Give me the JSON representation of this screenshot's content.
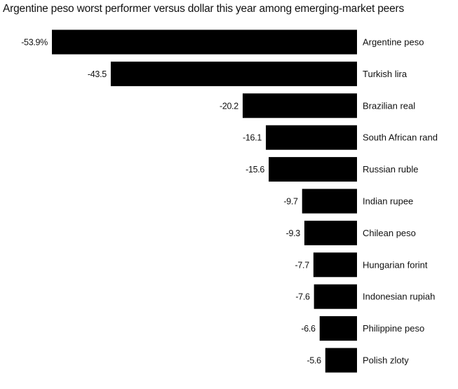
{
  "chart_data": {
    "type": "bar",
    "orientation": "horizontal",
    "title": "Argentine peso worst performer versus dollar this year among emerging-market peers",
    "categories": [
      "Argentine peso",
      "Turkish lira",
      "Brazilian real",
      "South African rand",
      "Russian ruble",
      "Indian rupee",
      "Chilean peso",
      "Hungarian forint",
      "Indonesian rupiah",
      "Philippine peso",
      "Polish zloty"
    ],
    "values": [
      -53.9,
      -43.5,
      -20.2,
      -16.1,
      -15.6,
      -9.7,
      -9.3,
      -7.7,
      -7.6,
      -6.6,
      -5.6
    ],
    "value_labels": [
      "-53.9%",
      "-43.5",
      "-20.2",
      "-16.1",
      "-15.6",
      "-9.7",
      "-9.3",
      "-7.7",
      "-7.6",
      "-6.6",
      "-5.6"
    ],
    "bar_color": "#000000",
    "xlim": [
      -53.9,
      0
    ],
    "grid": false,
    "legend": "none"
  }
}
